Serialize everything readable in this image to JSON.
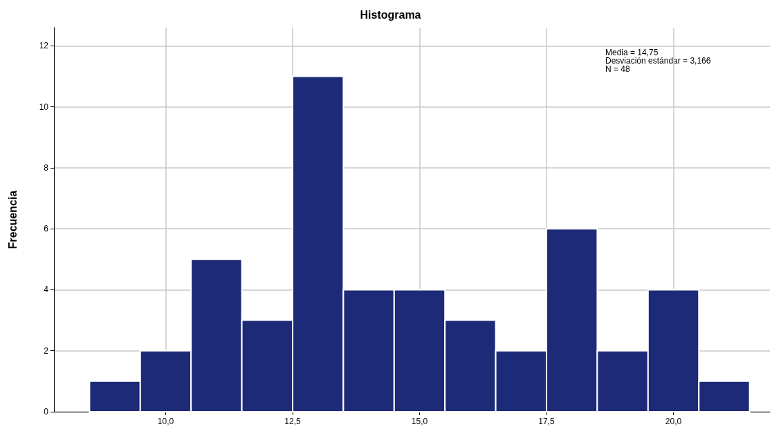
{
  "chart_data": {
    "type": "histogram",
    "title": "Histograma",
    "ylabel": "Frecuencia",
    "bins": [
      8.5,
      9.5,
      10.5,
      11.5,
      12.5,
      13.5,
      14.5,
      15.5,
      16.5,
      17.5,
      18.5,
      19.5,
      20.5,
      21.5
    ],
    "values": [
      1,
      2,
      5,
      3,
      11,
      4,
      4,
      3,
      2,
      6,
      2,
      4,
      1
    ],
    "color": "#1c2a78",
    "xlim": [
      7.8,
      21.9
    ],
    "xticks": [
      {
        "value": 10,
        "label": "10,0"
      },
      {
        "value": 12.5,
        "label": "12,5"
      },
      {
        "value": 15,
        "label": "15,0"
      },
      {
        "value": 17.5,
        "label": "17,5"
      },
      {
        "value": 20,
        "label": "20,0"
      }
    ],
    "ylim": [
      0,
      12.6
    ],
    "yticks": [
      0,
      2,
      4,
      6,
      8,
      10,
      12
    ],
    "grid": true,
    "annotations": [
      "Media = 14,75",
      "Desviación estándar = 3,166",
      "N = 48"
    ]
  }
}
